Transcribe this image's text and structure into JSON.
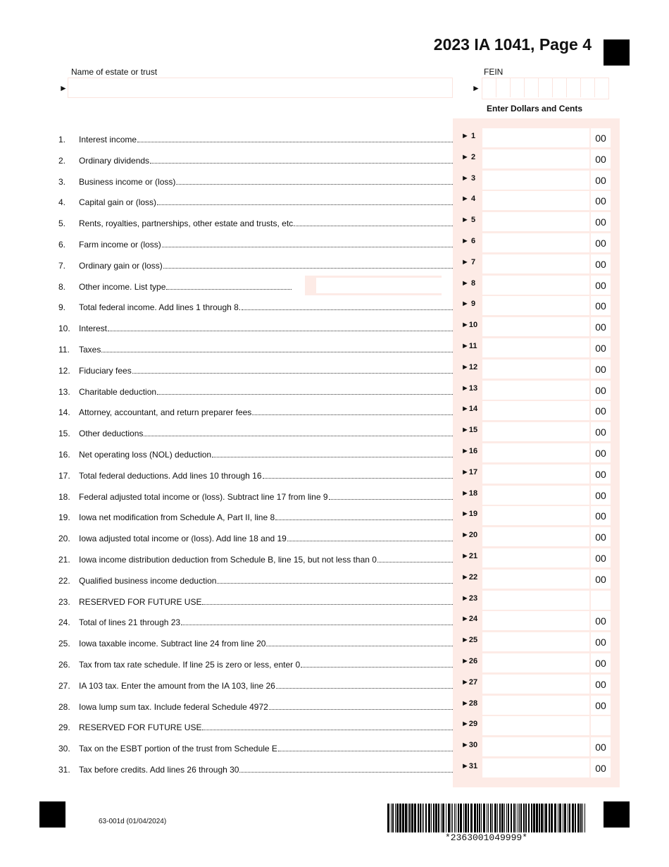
{
  "header": {
    "title": "2023 IA 1041, Page 4",
    "name_label": "Name of estate or trust",
    "name_value": "",
    "fein_label": "FEIN",
    "fein_value": "",
    "arrow": "►",
    "dollars_label": "Enter Dollars and Cents"
  },
  "lines": [
    {
      "num": "1.",
      "desc": "Interest income",
      "box": "► 1",
      "cents": "00"
    },
    {
      "num": "2.",
      "desc": "Ordinary dividends",
      "box": "► 2",
      "cents": "00"
    },
    {
      "num": "3.",
      "desc": "Business income or (loss)",
      "box": "► 3",
      "cents": "00"
    },
    {
      "num": "4.",
      "desc": "Capital gain or (loss)",
      "box": "► 4",
      "cents": "00"
    },
    {
      "num": "5.",
      "desc": "Rents, royalties, partnerships, other estate and trusts, etc.",
      "box": "► 5",
      "cents": "00"
    },
    {
      "num": "6.",
      "desc": "Farm income or (loss)",
      "box": "► 6",
      "cents": "00"
    },
    {
      "num": "7.",
      "desc": "Ordinary gain or (loss)",
      "box": "► 7",
      "cents": "00"
    },
    {
      "num": "8.",
      "desc": "Other income. List type",
      "box": "► 8",
      "cents": "00"
    },
    {
      "num": "9.",
      "desc": "Total federal income. Add lines 1 through 8.",
      "box": "► 9",
      "cents": "00"
    },
    {
      "num": "10.",
      "desc": "Interest",
      "box": "►10",
      "cents": "00"
    },
    {
      "num": "11.",
      "desc": "Taxes",
      "box": "►11",
      "cents": "00"
    },
    {
      "num": "12.",
      "desc": "Fiduciary fees",
      "box": "►12",
      "cents": "00"
    },
    {
      "num": "13.",
      "desc": "Charitable deduction",
      "box": "►13",
      "cents": "00"
    },
    {
      "num": "14.",
      "desc": "Attorney, accountant, and return preparer fees",
      "box": "►14",
      "cents": "00"
    },
    {
      "num": "15.",
      "desc": "Other deductions",
      "box": "►15",
      "cents": "00"
    },
    {
      "num": "16.",
      "desc": "Net operating loss (NOL) deduction",
      "box": "►16",
      "cents": "00"
    },
    {
      "num": "17.",
      "desc": "Total federal deductions. Add lines 10 through 16",
      "box": "►17",
      "cents": "00"
    },
    {
      "num": "18.",
      "desc": "Federal adjusted total income or (loss). Subtract line 17 from line 9",
      "box": "►18",
      "cents": "00"
    },
    {
      "num": "19.",
      "desc": "Iowa net modification from Schedule A, Part II, line 8",
      "box": "►19",
      "cents": "00"
    },
    {
      "num": "20.",
      "desc": "Iowa adjusted total income or (loss). Add line 18 and 19",
      "box": "►20",
      "cents": "00"
    },
    {
      "num": "21.",
      "desc": "Iowa income distribution deduction from Schedule B, line 15, but not less than 0",
      "box": "►21",
      "cents": "00"
    },
    {
      "num": "22.",
      "desc": "Qualified business income deduction",
      "box": "►22",
      "cents": "00"
    },
    {
      "num": "23.",
      "desc": "RESERVED FOR FUTURE USE",
      "box": "►23",
      "cents": ""
    },
    {
      "num": "24.",
      "desc": "Total of lines 21 through 23",
      "box": "►24",
      "cents": "00"
    },
    {
      "num": "25.",
      "desc": "Iowa taxable income. Subtract line 24 from line 20",
      "box": "►25",
      "cents": "00"
    },
    {
      "num": "26.",
      "desc": "Tax from tax rate schedule. If line 25 is zero or less, enter 0",
      "box": "►26",
      "cents": "00"
    },
    {
      "num": "27.",
      "desc": "IA 103 tax. Enter the amount from the IA 103, line 26",
      "box": "►27",
      "cents": "00"
    },
    {
      "num": "28.",
      "desc": "Iowa lump sum tax. Include federal Schedule 4972",
      "box": "►28",
      "cents": "00"
    },
    {
      "num": "29.",
      "desc": "RESERVED FOR FUTURE USE",
      "box": "►29",
      "cents": ""
    },
    {
      "num": "30.",
      "desc": "Tax on the ESBT portion of the trust from Schedule E",
      "box": "►30",
      "cents": "00"
    },
    {
      "num": "31.",
      "desc": "Tax before credits. Add lines 26 through 30",
      "box": "►31",
      "cents": "00"
    }
  ],
  "footer": {
    "form_number": "63-001d (01/04/2024)",
    "barcode_text": "*2363001049999*"
  },
  "colors": {
    "field_tint": "#fdebe6",
    "field_border": "#fbe4de"
  }
}
